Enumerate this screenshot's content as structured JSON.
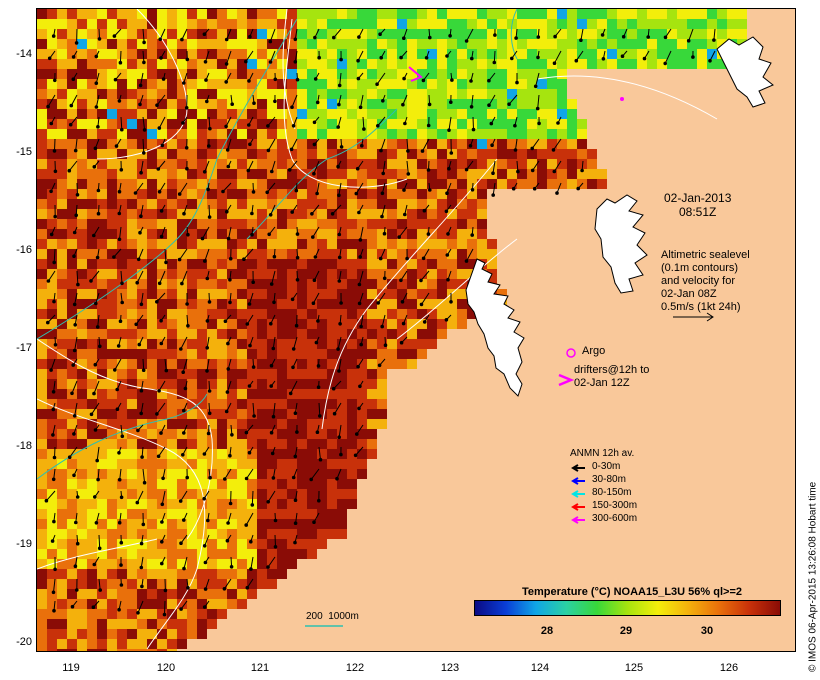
{
  "map": {
    "y_ticks": [
      "-14",
      "-15",
      "-16",
      "-17",
      "-18",
      "-19",
      "-20"
    ],
    "x_ticks": [
      "119",
      "120",
      "121",
      "122",
      "123",
      "124",
      "125",
      "126"
    ],
    "land_color": "#f9c89a",
    "sst_colors": [
      "#8a0c06",
      "#c8310a",
      "#e9700b",
      "#f4b10c",
      "#f3ee0b",
      "#a6e40f",
      "#38d83a",
      "#10a6e6",
      "#0a3dd6"
    ]
  },
  "annotations": {
    "date": "02-Jan-2013",
    "time": "08:51Z",
    "altimetry_line1": "Altimetric sealevel",
    "altimetry_line2": "(0.1m contours)",
    "altimetry_line3": "and velocity for",
    "altimetry_line4": "02-Jan 08Z",
    "altimetry_line5": "0.5m/s (1kt 24h)",
    "argo": "Argo",
    "drifters_line1": "drifters@12h to",
    "drifters_line2": "02-Jan 12Z",
    "bathymetry": "200  1000m"
  },
  "anmn_legend": {
    "title": "ANMN 12h av.",
    "items": [
      {
        "label": "0-30m",
        "color": "#000000"
      },
      {
        "label": "30-80m",
        "color": "#0000ff"
      },
      {
        "label": "80-150m",
        "color": "#00e5e5"
      },
      {
        "label": "150-300m",
        "color": "#ff0000"
      },
      {
        "label": "300-600m",
        "color": "#ff00ff"
      }
    ]
  },
  "colorbar": {
    "title": "Temperature (°C) NOAA15_L3U 56% ql>=2",
    "ticks": [
      "28",
      "29",
      "30"
    ]
  },
  "credit": "© IMOS 06-Apr-2015 13:26:08 Hobart time"
}
